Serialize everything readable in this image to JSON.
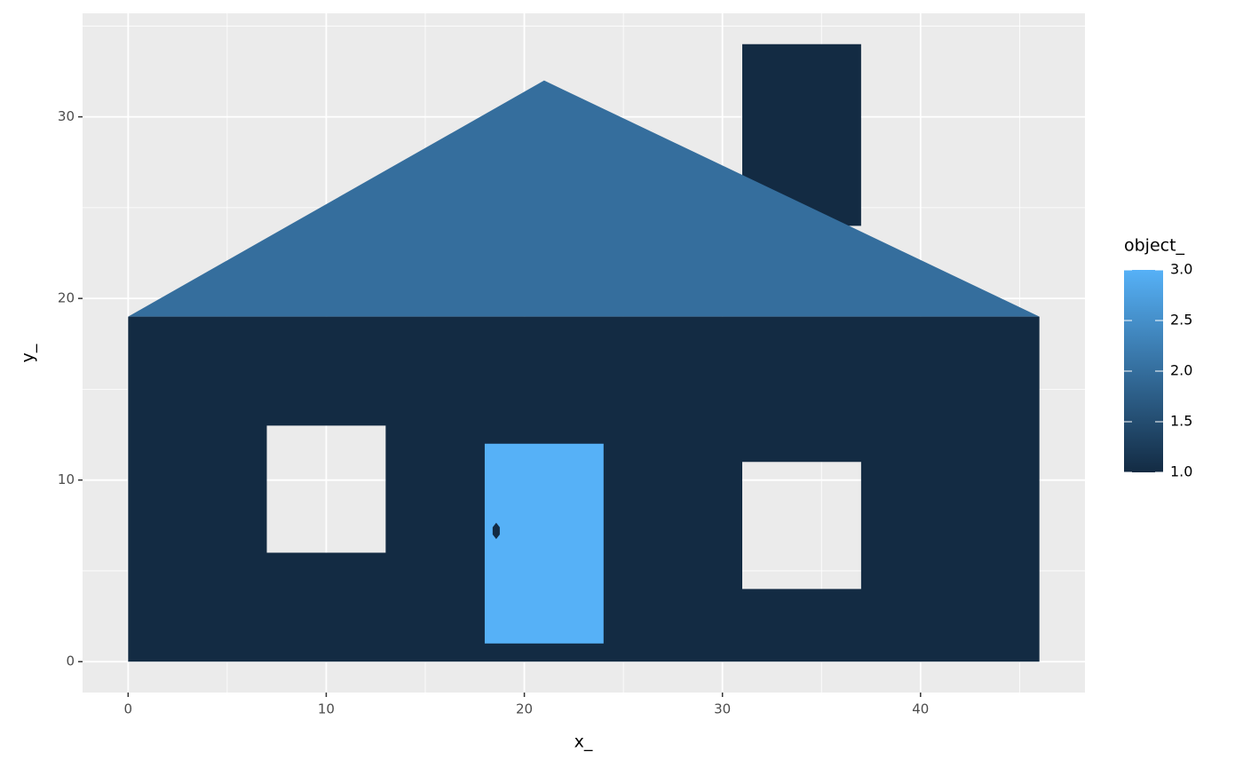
{
  "chart_data": {
    "type": "polygon",
    "x_label": "x_",
    "y_label": "y_",
    "xlim": [
      -2.3,
      48.3
    ],
    "ylim": [
      -1.7,
      35.7
    ],
    "xticks": [
      0,
      10,
      20,
      30,
      40
    ],
    "yticks": [
      0,
      10,
      20,
      30
    ],
    "xminor": [
      5,
      15,
      25,
      35,
      45
    ],
    "yminor": [
      5,
      15,
      25,
      35
    ],
    "grid": true,
    "fill_scale": {
      "title": "object_",
      "limits": [
        1,
        3
      ],
      "low": "#132b43",
      "high": "#56b1f7",
      "ticks": [
        {
          "value": 1,
          "label": "1.0"
        },
        {
          "value": 1.5,
          "label": "1.5"
        },
        {
          "value": 2,
          "label": "2.0"
        },
        {
          "value": 2.5,
          "label": "2.5"
        },
        {
          "value": 3,
          "label": "3.0"
        }
      ]
    },
    "polygons": [
      {
        "object_": 1,
        "rings": [
          [
            [
              31,
              24
            ],
            [
              37,
              24
            ],
            [
              37,
              34
            ],
            [
              31,
              34
            ]
          ]
        ]
      },
      {
        "object_": 2,
        "rings": [
          [
            [
              0,
              19
            ],
            [
              21,
              32
            ],
            [
              46,
              19
            ]
          ]
        ]
      },
      {
        "object_": 1,
        "rings": [
          [
            [
              0,
              0
            ],
            [
              46,
              0
            ],
            [
              46,
              19
            ],
            [
              0,
              19
            ]
          ],
          [
            [
              7,
              6
            ],
            [
              13,
              6
            ],
            [
              13,
              13
            ],
            [
              7,
              13
            ]
          ],
          [
            [
              31,
              4
            ],
            [
              37,
              4
            ],
            [
              37,
              11
            ],
            [
              31,
              11
            ]
          ]
        ]
      },
      {
        "object_": 3,
        "rings": [
          [
            [
              18,
              1
            ],
            [
              24,
              1
            ],
            [
              24,
              12
            ],
            [
              18,
              12
            ]
          ]
        ]
      },
      {
        "object_": 1,
        "rings": [
          [
            [
              18.4,
              7.0
            ],
            [
              18.58,
              6.75
            ],
            [
              18.76,
              7.0
            ],
            [
              18.76,
              7.4
            ],
            [
              18.58,
              7.65
            ],
            [
              18.4,
              7.4
            ]
          ]
        ]
      }
    ]
  }
}
